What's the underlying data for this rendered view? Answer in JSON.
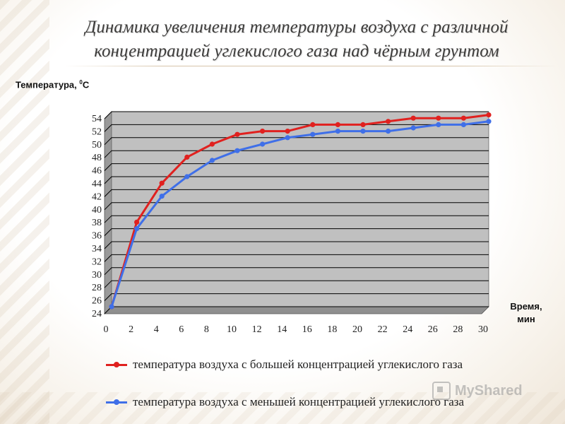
{
  "title": {
    "line1": "Динамика увеличения температуры воздуха  с различной",
    "line2": "концентрацией углекислого газа над чёрным грунтом"
  },
  "y_caption": {
    "text": "Температура, ",
    "sup": "0",
    "unit": "С"
  },
  "x_caption": {
    "line1": "Время,",
    "line2": "мин"
  },
  "watermark": "MyShared",
  "chart_data": {
    "type": "line",
    "x": [
      0,
      2,
      4,
      6,
      8,
      10,
      12,
      14,
      16,
      18,
      20,
      22,
      24,
      26,
      28,
      30
    ],
    "xlim": [
      0,
      30
    ],
    "ylim": [
      24,
      54
    ],
    "ystep": 2,
    "grid": true,
    "legend_position": "bottom",
    "series": [
      {
        "name": "температура воздуха с большей концентрацией углекислого газа",
        "color": "#e0211f",
        "values": [
          24,
          37,
          43,
          47,
          49,
          50.5,
          51,
          51,
          52,
          52,
          52,
          52.5,
          53,
          53,
          53,
          53.5
        ]
      },
      {
        "name": "температура воздуха с меньшей концентрацией углекислого газа",
        "color": "#3f6fe8",
        "values": [
          24,
          36,
          41,
          44,
          46.5,
          48,
          49,
          50,
          50.5,
          51,
          51,
          51,
          51.5,
          52,
          52,
          52.5
        ]
      }
    ],
    "plot_background": "#c0c0c0"
  }
}
